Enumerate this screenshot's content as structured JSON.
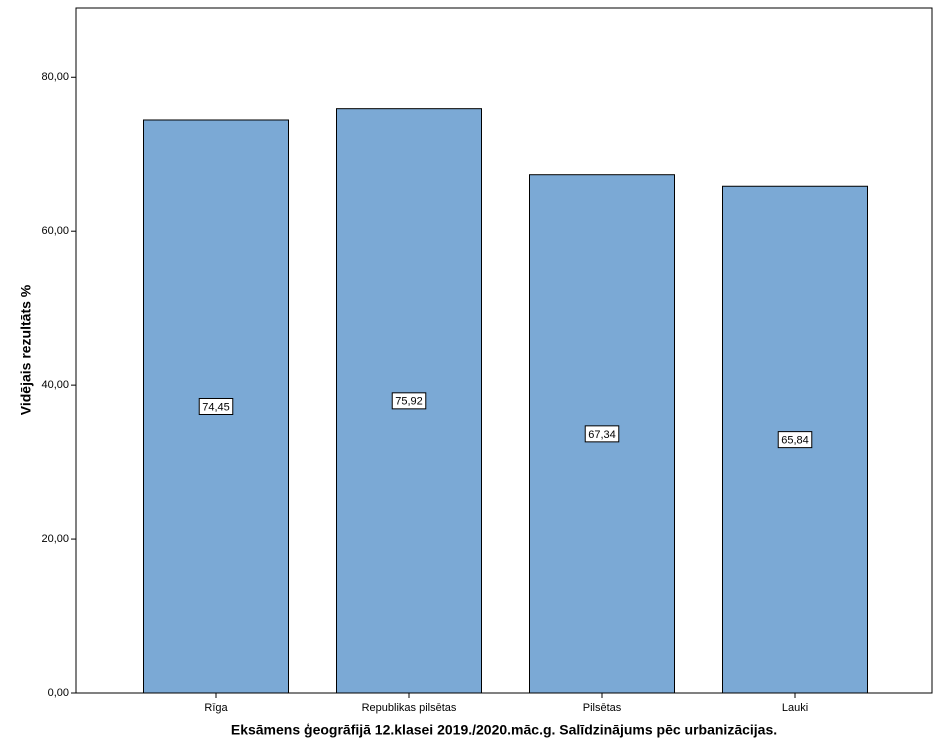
{
  "chart_data": {
    "type": "bar",
    "x_label": "Eksāmens ģeogrāfijā 12.klasei 2019./2020.māc.g. Salīdzinājums pēc urbanizācijas.",
    "y_label": "Vidējais rezultāts %",
    "categories": [
      "Rīga",
      "Republikas pilsētas",
      "Pilsētas",
      "Lauki"
    ],
    "values": [
      74.45,
      75.92,
      67.34,
      65.84
    ],
    "value_labels": [
      "74,45",
      "75,92",
      "67,34",
      "65,84"
    ],
    "color": "#7ba9d5",
    "ylim": [
      0,
      89
    ],
    "yticks": [
      {
        "value": 0,
        "label": "0,00"
      },
      {
        "value": 20,
        "label": "20,00"
      },
      {
        "value": 40,
        "label": "40,00"
      },
      {
        "value": 60,
        "label": "60,00"
      },
      {
        "value": 80,
        "label": "80,00"
      }
    ]
  }
}
